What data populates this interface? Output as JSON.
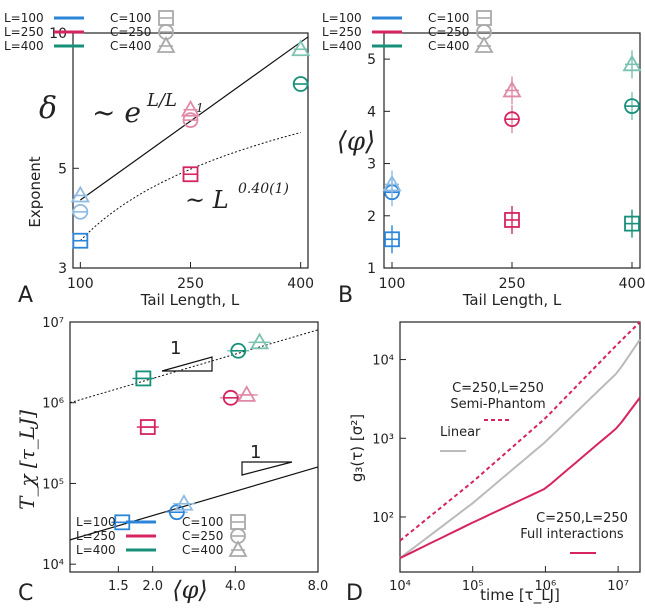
{
  "colors": {
    "L100": "#2b86d9",
    "L250": "#d6245e",
    "L400": "#17907a",
    "marker_light_blue": "#8fbbe3",
    "marker_light_red": "#e08aa8",
    "marker_light_green": "#7cc2b1",
    "gray": "#bbbbbb"
  },
  "chart_data": [
    {
      "panel": "A",
      "type": "scatter",
      "xlabel": "Tail Length, L",
      "ylabel": "Exponent",
      "ylabel_symbol": "δ",
      "x_ticks": [
        "100",
        "250",
        "400"
      ],
      "y_ticks": [
        "3",
        "5",
        "10"
      ],
      "xlim": [
        90,
        410
      ],
      "ylim": [
        3,
        10
      ],
      "log_y": true,
      "legend": {
        "lines": [
          "L=100",
          "L=250",
          "L=400"
        ],
        "markers": [
          "C=100",
          "C=250",
          "C=400"
        ]
      },
      "series": [
        {
          "name": "C=100",
          "x": [
            100,
            250
          ],
          "y": [
            3.45,
            4.85
          ]
        },
        {
          "name": "C=250",
          "x": [
            100,
            250,
            400
          ],
          "y": [
            4.0,
            6.4,
            7.7
          ]
        },
        {
          "name": "C=400",
          "x": [
            100,
            250,
            400
          ],
          "y": [
            4.35,
            6.75,
            9.2
          ]
        }
      ],
      "annotations": [
        "~ e",
        "L/L",
        "1",
        "~ L",
        "0.40(1)"
      ]
    },
    {
      "panel": "B",
      "type": "scatter",
      "xlabel": "Tail Length, L",
      "ylabel": "⟨φ⟩",
      "x_ticks": [
        "100",
        "250",
        "400"
      ],
      "y_ticks": [
        "1",
        "2",
        "3",
        "4",
        "5"
      ],
      "xlim": [
        90,
        410
      ],
      "ylim": [
        1,
        5.5
      ],
      "legend": {
        "lines": [
          "L=100",
          "L=250",
          "L=400"
        ],
        "markers": [
          "C=100",
          "C=250",
          "C=400"
        ]
      },
      "series": [
        {
          "name": "C=100",
          "x": [
            100,
            250,
            400
          ],
          "y": [
            1.55,
            1.92,
            1.85
          ]
        },
        {
          "name": "C=250",
          "x": [
            100,
            250,
            400
          ],
          "y": [
            2.45,
            3.85,
            4.1
          ]
        },
        {
          "name": "C=400",
          "x": [
            100,
            250,
            400
          ],
          "y": [
            2.6,
            4.4,
            4.9
          ]
        }
      ]
    },
    {
      "panel": "C",
      "type": "scatter",
      "xlabel": "⟨φ⟩",
      "ylabel": "T_χ [τ_LJ]",
      "x_ticks": [
        "1.5",
        "2.0",
        "4.0",
        "8.0"
      ],
      "y_ticks": [
        "10⁴",
        "10⁵",
        "10⁶",
        "10⁷"
      ],
      "log_x": true,
      "log_y": true,
      "xlim": [
        1.0,
        8.0
      ],
      "ylim": [
        8000,
        10000000
      ],
      "legend": {
        "lines": [
          "L=100",
          "L=250",
          "L=400"
        ],
        "markers": [
          "C=100",
          "C=250",
          "C=400"
        ]
      },
      "series": [
        {
          "name": "C=100",
          "x": [
            1.55,
            1.92,
            1.85
          ],
          "y": [
            33000,
            500000,
            2000000
          ]
        },
        {
          "name": "C=250",
          "x": [
            2.45,
            3.85,
            4.1
          ],
          "y": [
            44000,
            1150000,
            4400000
          ]
        },
        {
          "name": "C=400",
          "x": [
            2.6,
            4.4,
            4.9
          ],
          "y": [
            56000,
            1250000,
            5600000
          ]
        }
      ],
      "slope_labels": [
        "1",
        "1"
      ]
    },
    {
      "panel": "D",
      "type": "line",
      "xlabel": "time [τ_LJ]",
      "ylabel": "g₃(τ) [σ²]",
      "x_ticks": [
        "10⁴",
        "10⁵",
        "10⁶",
        "10⁷"
      ],
      "y_ticks": [
        "10²",
        "10³",
        "10⁴"
      ],
      "log_x": true,
      "log_y": true,
      "xlim": [
        10000,
        20000000
      ],
      "ylim": [
        20,
        30000
      ],
      "series": [
        {
          "name": "Semi-Phantom",
          "x": [
            10000,
            100000,
            1000000,
            10000000,
            20000000
          ],
          "y": [
            50,
            280,
            1800,
            16000,
            30000
          ]
        },
        {
          "name": "Linear",
          "x": [
            10000,
            100000,
            1000000,
            10000000,
            20000000
          ],
          "y": [
            30,
            150,
            900,
            7000,
            18000
          ]
        },
        {
          "name": "Full interactions",
          "x": [
            10000,
            100000,
            1000000,
            10000000,
            20000000
          ],
          "y": [
            30,
            85,
            230,
            1400,
            3300
          ]
        }
      ],
      "legend_labels": {
        "semi_phantom": "C=250,L=250",
        "semi_phantom_name": "Semi-Phantom",
        "linear": "Linear",
        "full": "C=250,L=250",
        "full_name": "Full interactions"
      }
    }
  ],
  "panel_labels": [
    "A",
    "B",
    "C",
    "D"
  ]
}
